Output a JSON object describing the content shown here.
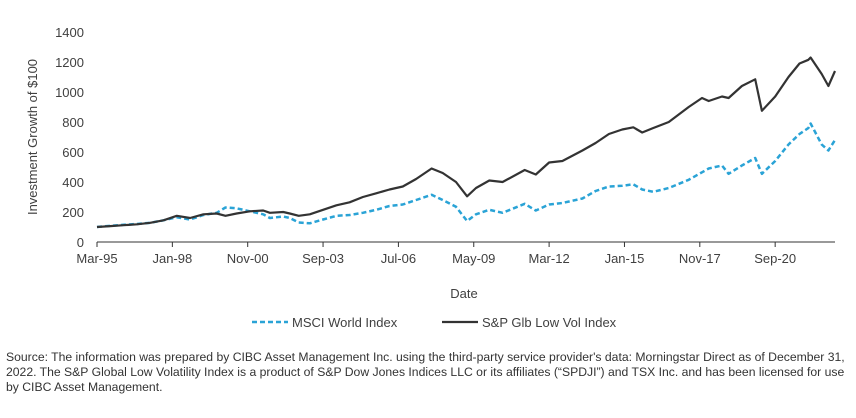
{
  "chart_data": {
    "type": "line",
    "xlabel": "Date",
    "ylabel": "Investment Growth of $100",
    "ylim": [
      0,
      1400
    ],
    "xlim": [
      "1995-03",
      "2022-12"
    ],
    "yticks": [
      0,
      200,
      400,
      600,
      800,
      1000,
      1200,
      1400
    ],
    "xtick_labels": [
      "Mar-95",
      "Jan-98",
      "Nov-00",
      "Sep-03",
      "Jul-06",
      "May-09",
      "Mar-12",
      "Jan-15",
      "Nov-17",
      "Sep-20"
    ],
    "grid": false,
    "legend": "bottom-center",
    "series": [
      {
        "name": "MSCI World Index",
        "color": "#2aa3d6",
        "style": "dashed",
        "points": [
          [
            "1995-03",
            100
          ],
          [
            "1995-09",
            108
          ],
          [
            "1996-03",
            115
          ],
          [
            "1996-09",
            120
          ],
          [
            "1997-03",
            128
          ],
          [
            "1997-09",
            145
          ],
          [
            "1998-03",
            165
          ],
          [
            "1998-09",
            150
          ],
          [
            "1999-03",
            180
          ],
          [
            "1999-09",
            195
          ],
          [
            "2000-01",
            230
          ],
          [
            "2000-06",
            225
          ],
          [
            "2000-12",
            205
          ],
          [
            "2001-06",
            185
          ],
          [
            "2001-09",
            160
          ],
          [
            "2002-03",
            170
          ],
          [
            "2002-06",
            160
          ],
          [
            "2002-10",
            130
          ],
          [
            "2003-03",
            125
          ],
          [
            "2003-09",
            150
          ],
          [
            "2004-03",
            175
          ],
          [
            "2004-09",
            180
          ],
          [
            "2005-03",
            195
          ],
          [
            "2005-09",
            215
          ],
          [
            "2006-03",
            240
          ],
          [
            "2006-09",
            250
          ],
          [
            "2007-03",
            280
          ],
          [
            "2007-10",
            315
          ],
          [
            "2008-03",
            280
          ],
          [
            "2008-09",
            235
          ],
          [
            "2009-02",
            140
          ],
          [
            "2009-06",
            185
          ],
          [
            "2009-12",
            215
          ],
          [
            "2010-06",
            195
          ],
          [
            "2011-04",
            255
          ],
          [
            "2011-09",
            210
          ],
          [
            "2012-03",
            250
          ],
          [
            "2012-09",
            260
          ],
          [
            "2013-06",
            290
          ],
          [
            "2013-12",
            340
          ],
          [
            "2014-06",
            370
          ],
          [
            "2014-12",
            375
          ],
          [
            "2015-05",
            385
          ],
          [
            "2015-09",
            350
          ],
          [
            "2016-02",
            335
          ],
          [
            "2016-09",
            360
          ],
          [
            "2017-06",
            415
          ],
          [
            "2017-12",
            465
          ],
          [
            "2018-03",
            490
          ],
          [
            "2018-09",
            510
          ],
          [
            "2018-12",
            455
          ],
          [
            "2019-06",
            510
          ],
          [
            "2019-12",
            560
          ],
          [
            "2020-03",
            455
          ],
          [
            "2020-09",
            540
          ],
          [
            "2021-03",
            650
          ],
          [
            "2021-08",
            720
          ],
          [
            "2021-12",
            760
          ],
          [
            "2022-01",
            790
          ],
          [
            "2022-06",
            650
          ],
          [
            "2022-09",
            610
          ],
          [
            "2022-12",
            680
          ]
        ]
      },
      {
        "name": "S&P Glb Low Vol Index",
        "color": "#333333",
        "style": "solid",
        "points": [
          [
            "1995-03",
            100
          ],
          [
            "1995-09",
            106
          ],
          [
            "1996-03",
            112
          ],
          [
            "1996-09",
            118
          ],
          [
            "1997-03",
            128
          ],
          [
            "1997-09",
            145
          ],
          [
            "1998-03",
            175
          ],
          [
            "1998-09",
            160
          ],
          [
            "1999-03",
            185
          ],
          [
            "1999-09",
            190
          ],
          [
            "2000-01",
            175
          ],
          [
            "2000-06",
            190
          ],
          [
            "2000-12",
            205
          ],
          [
            "2001-06",
            210
          ],
          [
            "2001-09",
            195
          ],
          [
            "2002-03",
            200
          ],
          [
            "2002-06",
            190
          ],
          [
            "2002-10",
            175
          ],
          [
            "2003-03",
            185
          ],
          [
            "2003-09",
            215
          ],
          [
            "2004-03",
            245
          ],
          [
            "2004-09",
            265
          ],
          [
            "2005-03",
            300
          ],
          [
            "2005-09",
            325
          ],
          [
            "2006-03",
            350
          ],
          [
            "2006-09",
            370
          ],
          [
            "2007-03",
            420
          ],
          [
            "2007-10",
            490
          ],
          [
            "2008-03",
            460
          ],
          [
            "2008-09",
            400
          ],
          [
            "2009-02",
            305
          ],
          [
            "2009-06",
            360
          ],
          [
            "2009-12",
            410
          ],
          [
            "2010-06",
            400
          ],
          [
            "2011-04",
            480
          ],
          [
            "2011-09",
            450
          ],
          [
            "2012-03",
            530
          ],
          [
            "2012-09",
            540
          ],
          [
            "2013-06",
            610
          ],
          [
            "2013-12",
            660
          ],
          [
            "2014-06",
            720
          ],
          [
            "2014-12",
            750
          ],
          [
            "2015-05",
            765
          ],
          [
            "2015-09",
            730
          ],
          [
            "2016-02",
            760
          ],
          [
            "2016-09",
            800
          ],
          [
            "2017-06",
            900
          ],
          [
            "2017-12",
            960
          ],
          [
            "2018-03",
            940
          ],
          [
            "2018-09",
            970
          ],
          [
            "2018-12",
            960
          ],
          [
            "2019-06",
            1040
          ],
          [
            "2019-12",
            1085
          ],
          [
            "2020-03",
            875
          ],
          [
            "2020-09",
            970
          ],
          [
            "2021-03",
            1100
          ],
          [
            "2021-08",
            1190
          ],
          [
            "2021-12",
            1215
          ],
          [
            "2022-01",
            1230
          ],
          [
            "2022-06",
            1120
          ],
          [
            "2022-09",
            1040
          ],
          [
            "2022-12",
            1140
          ]
        ]
      }
    ]
  },
  "footer": {
    "source_note": "Source: The information was prepared by CIBC Asset Management Inc. using the third-party service provider's data: Morningstar Direct as of December 31, 2022. The S&P Global Low Volatility Index is a product of S&P Dow Jones Indices LLC or its affiliates (“SPDJI”) and TSX Inc. and has been licensed for use by CIBC Asset Management."
  }
}
